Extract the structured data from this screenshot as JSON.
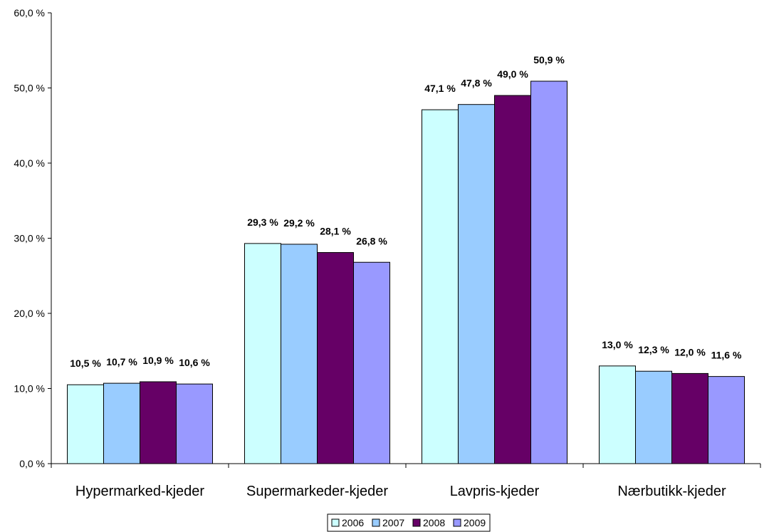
{
  "chart_data": {
    "type": "bar",
    "title": "",
    "xlabel": "",
    "ylabel": "",
    "ylim": [
      0,
      60
    ],
    "yticks": [
      "0,0 %",
      "10,0 %",
      "20,0 %",
      "30,0 %",
      "40,0 %",
      "50,0 %",
      "60,0 %"
    ],
    "categories": [
      "Hypermarked-kjeder",
      "Supermarkeder-kjeder",
      "Lavpris-kjeder",
      "Nærbutikk-kjeder"
    ],
    "series": [
      {
        "name": "2006",
        "color": "#ccffff",
        "values": [
          10.5,
          29.3,
          47.1,
          13.0
        ],
        "labels": [
          "10,5 %",
          "29,3 %",
          "47,1 %",
          "13,0 %"
        ]
      },
      {
        "name": "2007",
        "color": "#99ccff",
        "values": [
          10.7,
          29.2,
          47.8,
          12.3
        ],
        "labels": [
          "10,7 %",
          "29,2 %",
          "47,8 %",
          "12,3 %"
        ]
      },
      {
        "name": "2008",
        "color": "#660066",
        "values": [
          10.9,
          28.1,
          49.0,
          12.0
        ],
        "labels": [
          "10,9 %",
          "28,1 %",
          "49,0 %",
          "12,0 %"
        ]
      },
      {
        "name": "2009",
        "color": "#9999ff",
        "values": [
          10.6,
          26.8,
          50.9,
          11.6
        ],
        "labels": [
          "10,6 %",
          "26,8 %",
          "50,9 %",
          "11,6 %"
        ]
      }
    ],
    "grid": false,
    "legend": "bottom"
  }
}
